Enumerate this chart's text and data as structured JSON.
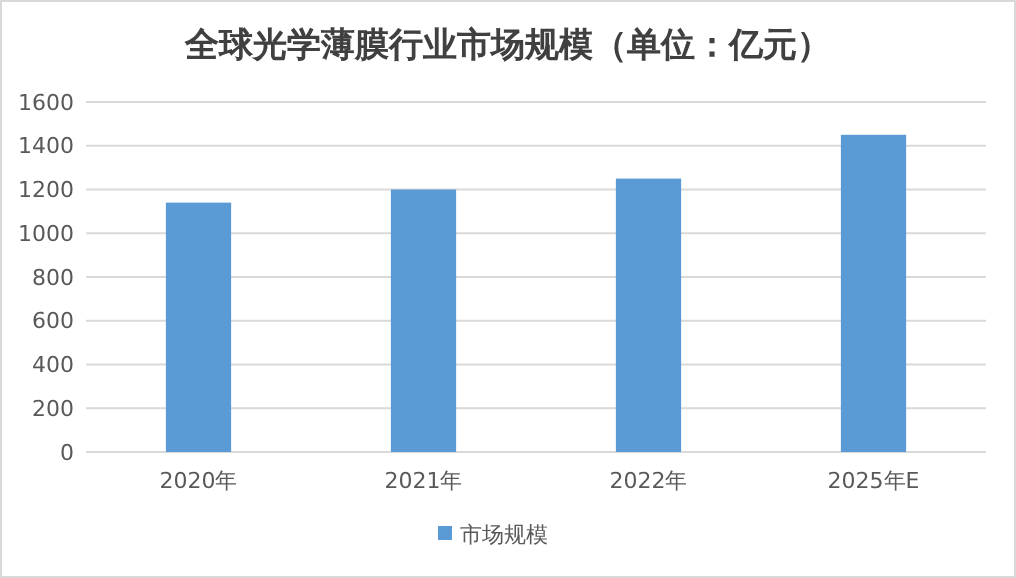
{
  "chart_data": {
    "type": "bar",
    "title": "全球光学薄膜行业市场规模（单位：亿元）",
    "categories": [
      "2020年",
      "2021年",
      "2022年",
      "2025年E"
    ],
    "series": [
      {
        "name": "市场规模",
        "color": "#5b9bd5",
        "values": [
          1140,
          1200,
          1250,
          1450
        ]
      }
    ],
    "ylim": [
      0,
      1600
    ],
    "yticks": [
      0,
      200,
      400,
      600,
      800,
      1000,
      1200,
      1400,
      1600
    ],
    "grid": "y",
    "legend": "bottom"
  }
}
